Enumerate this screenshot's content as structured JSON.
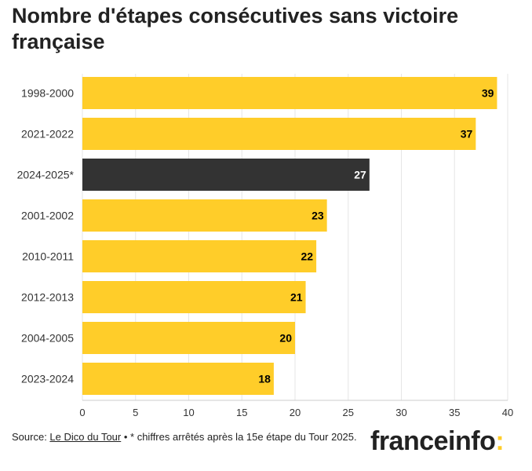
{
  "title": "Nombre d'étapes consécutives sans victoire française",
  "source": {
    "prefix": "Source: ",
    "link_text": "Le Dico du Tour",
    "suffix": " • * chiffres arrêtés après la 15e étape du Tour 2025."
  },
  "logo": {
    "text": "franceinfo",
    "colon": ":"
  },
  "colors": {
    "bar": "#ffcd29",
    "highlight": "#333333",
    "grid": "#e6e6e6",
    "label_dark": "#000000",
    "label_light": "#ffffff"
  },
  "chart_data": {
    "type": "bar",
    "orientation": "horizontal",
    "title": "Nombre d'étapes consécutives sans victoire française",
    "categories": [
      "1998-2000",
      "2021-2022",
      "2024-2025*",
      "2001-2002",
      "2010-2011",
      "2012-2013",
      "2004-2005",
      "2023-2024"
    ],
    "values": [
      39,
      37,
      27,
      23,
      22,
      21,
      20,
      18
    ],
    "highlight": "2024-2025*",
    "xlim": [
      0,
      40
    ],
    "xticks": [
      0,
      5,
      10,
      15,
      20,
      25,
      30,
      35,
      40
    ],
    "xlabel": "",
    "ylabel": "",
    "grid": true,
    "data_labels": true
  }
}
